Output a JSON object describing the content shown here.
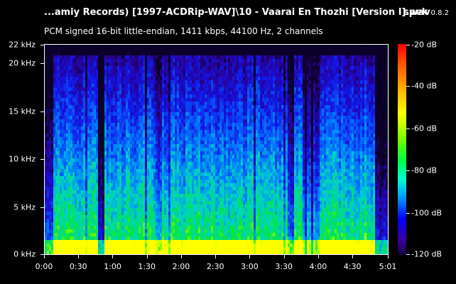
{
  "window": {
    "title": "...amiy Records) [1997-ACDRip-WAV]\\10 - Vaarai En Thozhi [Version I].wav",
    "app_name": "spek",
    "app_version": "0.8.2",
    "file_info": "PCM signed 16-bit little-endian, 1411 kbps, 44100 Hz, 2 channels"
  },
  "frequency_axis": {
    "labels": [
      "0 kHz",
      "5 kHz",
      "10 kHz",
      "15 kHz",
      "20 kHz",
      "22 kHz"
    ],
    "values_khz": [
      0,
      5,
      10,
      15,
      20,
      22
    ]
  },
  "time_axis": {
    "labels": [
      "0:00",
      "0:30",
      "1:00",
      "1:30",
      "2:00",
      "2:30",
      "3:00",
      "3:30",
      "4:00",
      "4:30",
      "5:01"
    ],
    "values_sec": [
      0,
      30,
      60,
      90,
      120,
      150,
      180,
      210,
      240,
      270,
      301
    ]
  },
  "level_legend": {
    "labels": [
      "-20 dB",
      "-40 dB",
      "-60 dB",
      "-80 dB",
      "-100 dB",
      "-120 dB"
    ],
    "values_db": [
      -20,
      -40,
      -60,
      -80,
      -100,
      -120
    ]
  },
  "colors": {
    "background": "#000000",
    "text": "#ffffff"
  }
}
